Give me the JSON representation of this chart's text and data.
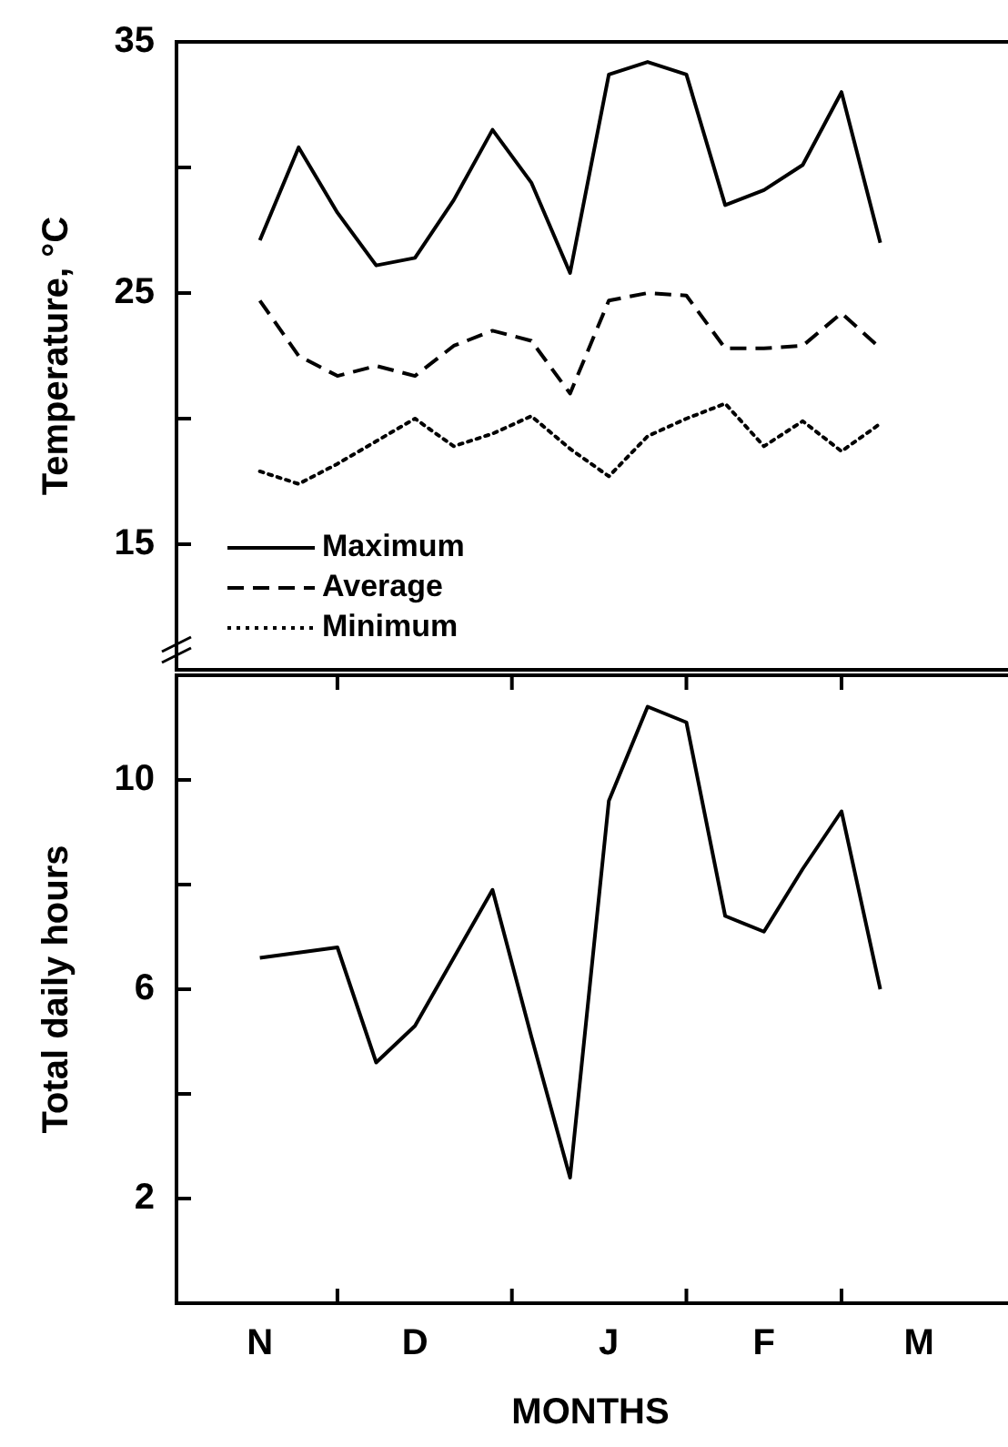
{
  "chart_data": [
    {
      "type": "line",
      "ylabel": "Temperature, °C",
      "categories": [
        null,
        null,
        null,
        null,
        null,
        null,
        null,
        null,
        null,
        null,
        null,
        null,
        null,
        null,
        null,
        null,
        null,
        null,
        null,
        null,
        null
      ],
      "ylim": [
        10,
        35
      ],
      "yticks": [
        15,
        {
          "value": 20,
          "label": null
        },
        25,
        {
          "value": 30,
          "label": null
        },
        35
      ],
      "tick_labels": "y",
      "legend": "bottom left",
      "grid": false,
      "series": [
        {
          "name": "Maximum",
          "color": "#000000",
          "line_style": "solid",
          "values": [
            null,
            null,
            27.1,
            30.8,
            28.2,
            26.1,
            26.4,
            28.7,
            31.5,
            29.4,
            25.8,
            33.7,
            34.2,
            33.7,
            28.5,
            29.1,
            30.1,
            33.0,
            27.0,
            null,
            null
          ]
        },
        {
          "name": "Average",
          "color": "#000000",
          "line_style": "dashed",
          "values": [
            null,
            null,
            24.7,
            22.5,
            21.7,
            22.1,
            21.7,
            22.9,
            23.5,
            23.1,
            21.0,
            24.7,
            25.0,
            24.9,
            22.8,
            22.8,
            22.9,
            24.2,
            22.8,
            null,
            null
          ]
        },
        {
          "name": "Minimum",
          "color": "#000000",
          "line_style": "dotted",
          "values": [
            null,
            null,
            17.9,
            17.4,
            18.2,
            19.1,
            20.0,
            18.9,
            19.4,
            20.1,
            18.8,
            17.7,
            19.3,
            20.0,
            20.6,
            18.9,
            19.9,
            18.7,
            19.8,
            null,
            null
          ]
        }
      ]
    },
    {
      "type": "line",
      "xlabel": "MONTHS",
      "ylabel": "Total daily hours",
      "categories": [
        null,
        null,
        "N",
        null,
        null,
        null,
        "D",
        null,
        null,
        null,
        null,
        "J",
        null,
        null,
        null,
        "F",
        null,
        null,
        null,
        "M",
        null
      ],
      "ylim": [
        0,
        12
      ],
      "yticks": [
        2,
        {
          "value": 4,
          "label": null
        },
        6,
        {
          "value": 8,
          "label": null
        },
        10
      ],
      "grid": false,
      "series": [
        {
          "color": "#000000",
          "line_style": "solid",
          "values": [
            null,
            null,
            6.6,
            6.7,
            6.8,
            4.6,
            5.3,
            6.6,
            7.9,
            5.1,
            2.4,
            9.6,
            11.4,
            11.1,
            7.4,
            7.1,
            8.3,
            9.4,
            6.0,
            null,
            null
          ]
        }
      ]
    }
  ]
}
